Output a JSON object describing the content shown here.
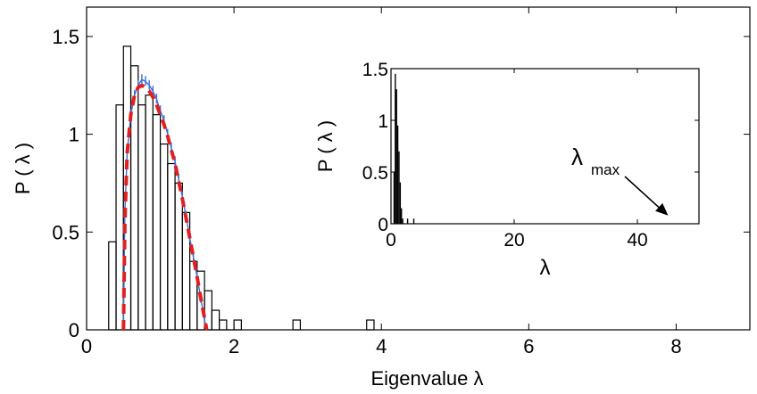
{
  "chart_data": [
    {
      "type": "line",
      "xlabel": "Eigenvalue λ",
      "ylabel": "P ( λ )",
      "xlim": [
        0,
        9
      ],
      "ylim": [
        0,
        1.65
      ],
      "xticks": [
        0,
        2,
        4,
        6,
        8
      ],
      "xtick_labels": [
        "0",
        "2",
        "4",
        "6",
        "8"
      ],
      "yticks": [
        0,
        0.5,
        1,
        1.5
      ],
      "ytick_labels": [
        "0",
        "0.5",
        "1",
        "1.5"
      ],
      "grid": false,
      "series": [
        {
          "style": "black-step-histogram",
          "color": "#000000",
          "bin_width": 0.1,
          "bins": [
            {
              "x": 0.3,
              "y": 0.45
            },
            {
              "x": 0.4,
              "y": 1.15
            },
            {
              "x": 0.5,
              "y": 1.45
            },
            {
              "x": 0.6,
              "y": 1.35
            },
            {
              "x": 0.7,
              "y": 1.15
            },
            {
              "x": 0.8,
              "y": 1.2
            },
            {
              "x": 0.9,
              "y": 1.1
            },
            {
              "x": 1.0,
              "y": 0.95
            },
            {
              "x": 1.1,
              "y": 0.85
            },
            {
              "x": 1.2,
              "y": 0.75
            },
            {
              "x": 1.3,
              "y": 0.6
            },
            {
              "x": 1.4,
              "y": 0.35
            },
            {
              "x": 1.5,
              "y": 0.3
            },
            {
              "x": 1.6,
              "y": 0.2
            },
            {
              "x": 1.7,
              "y": 0.1
            },
            {
              "x": 1.8,
              "y": 0.05
            },
            {
              "x": 1.9,
              "y": 0.0
            },
            {
              "x": 2.0,
              "y": 0.05
            },
            {
              "x": 2.8,
              "y": 0.05
            },
            {
              "x": 3.8,
              "y": 0.05
            }
          ]
        },
        {
          "style": "blue-noisy-histogram",
          "color": "#3c6fd8",
          "x": [
            0.5,
            0.52,
            0.55,
            0.6,
            0.65,
            0.7,
            0.75,
            0.8,
            0.85,
            0.9,
            0.95,
            1.0,
            1.05,
            1.1,
            1.15,
            1.2,
            1.25,
            1.3,
            1.35,
            1.4,
            1.45,
            1.5,
            1.55,
            1.6,
            1.63
          ],
          "y": [
            0.0,
            0.6,
            0.9,
            1.1,
            1.2,
            1.25,
            1.28,
            1.27,
            1.25,
            1.22,
            1.18,
            1.12,
            1.07,
            1.0,
            0.93,
            0.86,
            0.77,
            0.68,
            0.58,
            0.47,
            0.37,
            0.27,
            0.16,
            0.05,
            0.0
          ]
        },
        {
          "style": "red-dashed-theory",
          "color": "#e02020",
          "x": [
            0.5,
            0.52,
            0.55,
            0.6,
            0.65,
            0.7,
            0.75,
            0.8,
            0.85,
            0.9,
            0.95,
            1.0,
            1.05,
            1.1,
            1.15,
            1.2,
            1.25,
            1.3,
            1.35,
            1.4,
            1.45,
            1.5,
            1.55,
            1.6,
            1.63
          ],
          "y": [
            0.0,
            0.55,
            0.9,
            1.1,
            1.2,
            1.24,
            1.25,
            1.24,
            1.22,
            1.19,
            1.15,
            1.1,
            1.05,
            0.99,
            0.92,
            0.85,
            0.76,
            0.67,
            0.57,
            0.47,
            0.37,
            0.27,
            0.16,
            0.06,
            0.0
          ]
        }
      ]
    },
    {
      "type": "bar",
      "inset": true,
      "xlabel": "λ",
      "ylabel": "P ( λ )",
      "xlim": [
        0,
        50
      ],
      "ylim": [
        0,
        1.5
      ],
      "xticks": [
        0,
        20,
        40
      ],
      "xtick_labels": [
        "0",
        "20",
        "40"
      ],
      "yticks": [
        0,
        0.5,
        1,
        1.5
      ],
      "ytick_labels": [
        "0",
        "0.5",
        "1",
        "1.5"
      ],
      "bin_width": 0.2,
      "bins": [
        {
          "x": 0.4,
          "y": 0.5
        },
        {
          "x": 0.6,
          "y": 1.45
        },
        {
          "x": 0.8,
          "y": 1.3
        },
        {
          "x": 1.0,
          "y": 0.95
        },
        {
          "x": 1.2,
          "y": 0.7
        },
        {
          "x": 1.4,
          "y": 0.4
        },
        {
          "x": 1.6,
          "y": 0.15
        },
        {
          "x": 1.8,
          "y": 0.05
        },
        {
          "x": 2.6,
          "y": 0.05
        },
        {
          "x": 3.6,
          "y": 0.05
        }
      ],
      "annotation": {
        "text": "λ",
        "subscript": "max",
        "points_to_x": 45,
        "points_to_y": 0.08
      }
    }
  ]
}
